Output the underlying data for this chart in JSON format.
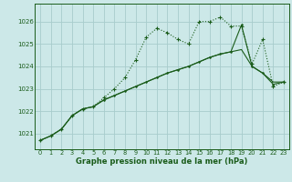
{
  "x": [
    0,
    1,
    2,
    3,
    4,
    5,
    6,
    7,
    8,
    9,
    10,
    11,
    12,
    13,
    14,
    15,
    16,
    17,
    18,
    19,
    20,
    21,
    22,
    23
  ],
  "series1": [
    1020.7,
    1020.9,
    1021.2,
    1021.8,
    1022.1,
    1022.2,
    1022.6,
    1023.0,
    1023.5,
    1024.3,
    1025.3,
    1025.7,
    1025.5,
    1025.2,
    1025.0,
    1026.0,
    1026.0,
    1026.2,
    1025.8,
    1025.8,
    1024.1,
    1025.2,
    1023.1,
    1023.3
  ],
  "series2": [
    1020.7,
    1020.9,
    1021.2,
    1021.8,
    1022.1,
    1022.2,
    1022.5,
    1022.7,
    1022.9,
    1023.1,
    1023.3,
    1023.5,
    1023.7,
    1023.85,
    1024.0,
    1024.2,
    1024.4,
    1024.55,
    1024.65,
    1024.75,
    1024.0,
    1023.7,
    1023.3,
    1023.3
  ],
  "series3": [
    1020.7,
    1020.9,
    1021.2,
    1021.8,
    1022.1,
    1022.2,
    1022.5,
    1022.7,
    1022.9,
    1023.1,
    1023.3,
    1023.5,
    1023.7,
    1023.85,
    1024.0,
    1024.2,
    1024.4,
    1024.55,
    1024.65,
    1025.85,
    1024.0,
    1023.7,
    1023.2,
    1023.3
  ],
  "line_color": "#1a5c1a",
  "bg_color": "#cce8e8",
  "grid_color": "#a8cccc",
  "xlabel": "Graphe pression niveau de la mer (hPa)",
  "ylabel_ticks": [
    1021,
    1022,
    1023,
    1024,
    1025,
    1026
  ],
  "xlim": [
    -0.5,
    23.5
  ],
  "ylim": [
    1020.3,
    1026.8
  ]
}
